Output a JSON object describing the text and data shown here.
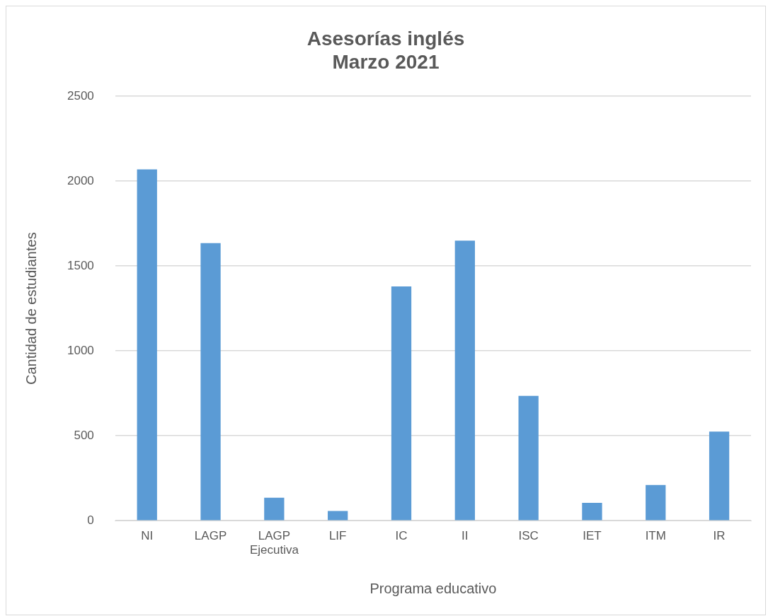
{
  "chart_data": {
    "type": "bar",
    "title": [
      "Asesorías inglés",
      "Marzo 2021"
    ],
    "xlabel": "Programa educativo",
    "ylabel": "Cantidad de estudiantes",
    "categories": [
      "NI",
      "LAGP",
      "LAGP Ejecutiva",
      "LIF",
      "IC",
      "II",
      "ISC",
      "IET",
      "ITM",
      "IR"
    ],
    "values": [
      2070,
      1635,
      135,
      57,
      1380,
      1650,
      735,
      105,
      210,
      525
    ],
    "color": "#5b9bd5",
    "ylim": [
      0,
      2500
    ],
    "yticks": [
      0,
      500,
      1000,
      1500,
      2000,
      2500
    ],
    "grid": "y",
    "legend": false
  }
}
